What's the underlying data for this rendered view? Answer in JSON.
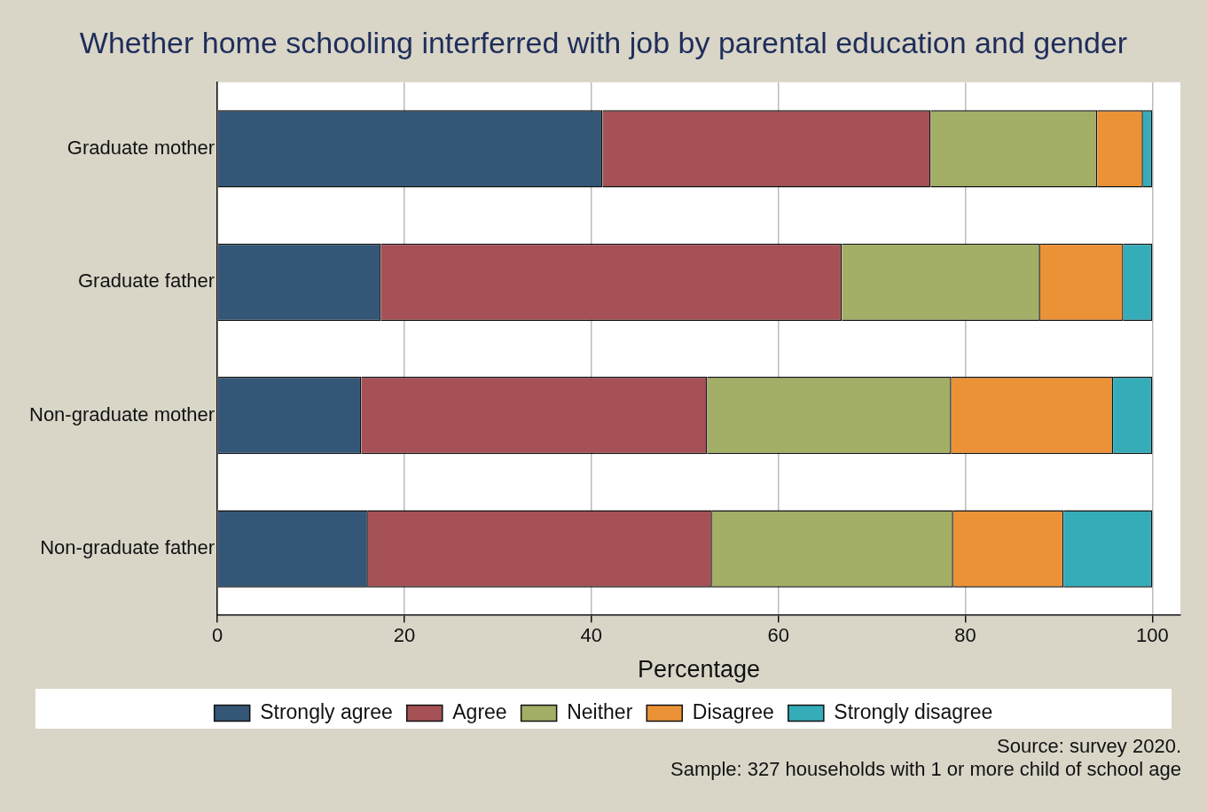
{
  "chart_data": {
    "type": "bar",
    "orientation": "horizontal",
    "stacked": true,
    "title": "Whether home schooling interferred with job by parental education and gender",
    "xlabel": "Percentage",
    "categories": [
      "Graduate mother",
      "Graduate father",
      "Non-graduate mother",
      "Non-graduate father"
    ],
    "series": [
      {
        "name": "Strongly agree",
        "color": "#345778",
        "values": [
          41.2,
          17.5,
          15.4,
          16.1
        ]
      },
      {
        "name": "Agree",
        "color": "#a65155",
        "values": [
          35.1,
          49.3,
          37.0,
          36.8
        ]
      },
      {
        "name": "Neither",
        "color": "#a3ae66",
        "values": [
          17.8,
          21.2,
          26.1,
          25.8
        ]
      },
      {
        "name": "Disagree",
        "color": "#ec9236",
        "values": [
          4.9,
          8.9,
          17.3,
          11.8
        ]
      },
      {
        "name": "Strongly disagree",
        "color": "#35adb9",
        "values": [
          1.0,
          3.1,
          4.2,
          9.5
        ]
      }
    ],
    "xlim": [
      0,
      103
    ],
    "xticks": [
      0,
      20,
      40,
      60,
      80,
      100
    ],
    "grid": "x",
    "legend": "bottom",
    "annotations": [
      "Source: survey 2020.",
      "Sample: 327 households with 1 or more child of school age"
    ]
  }
}
